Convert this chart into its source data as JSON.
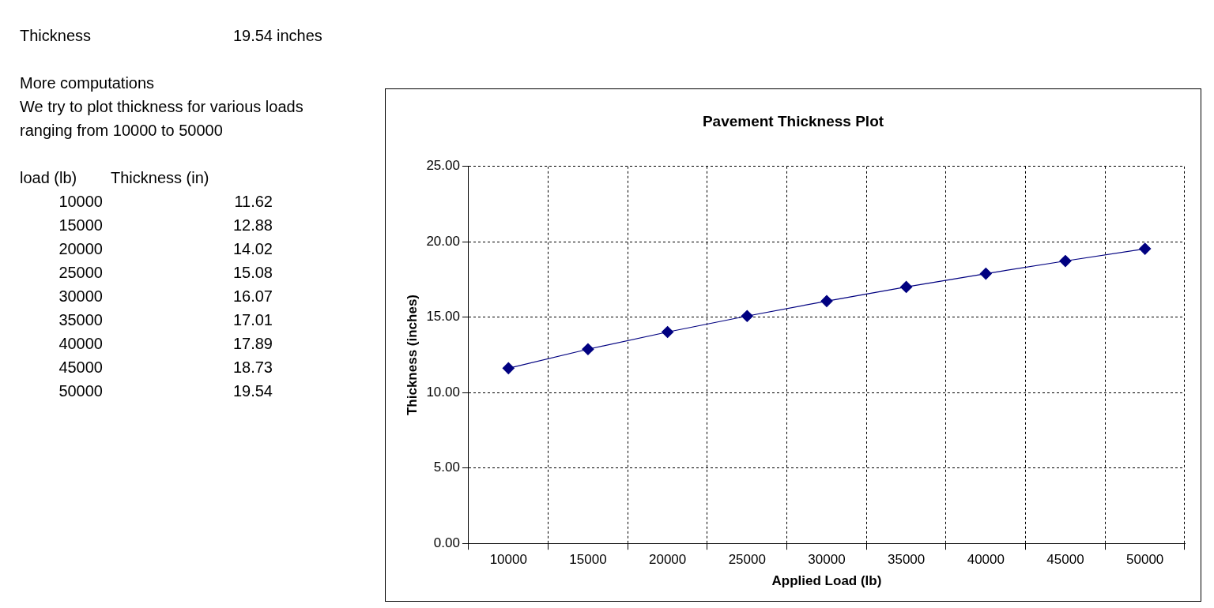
{
  "chart_data": {
    "type": "line",
    "title": "Pavement Thickness Plot",
    "xlabel": "Applied Load (lb)",
    "ylabel": "Thickness (inches)",
    "categories": [
      "10000",
      "15000",
      "20000",
      "25000",
      "30000",
      "35000",
      "40000",
      "45000",
      "50000"
    ],
    "series": [
      {
        "color": "#000080",
        "values": [
          11.62,
          12.88,
          14.02,
          15.08,
          16.07,
          17.01,
          17.89,
          18.73,
          19.54
        ]
      }
    ],
    "ylim": [
      0,
      25
    ],
    "yticks": [
      {
        "value": 0,
        "label": "0.00"
      },
      {
        "value": 5,
        "label": "5.00"
      },
      {
        "value": 10,
        "label": "10.00"
      },
      {
        "value": 15,
        "label": "15.00"
      },
      {
        "value": 20,
        "label": "20.00"
      },
      {
        "value": 25,
        "label": "25.00"
      }
    ],
    "grid": true,
    "legend": false,
    "marker": "diamond",
    "line_style": "solid",
    "annotations": [
      "Thickness",
      "19.54",
      "inches",
      "More computations",
      "We try to plot thickness for various loads",
      "ranging from 10000 to 50000",
      "load (lb)",
      "Thickness (in)",
      "11.62",
      "12.88",
      "14.02",
      "15.08",
      "16.07",
      "17.01",
      "17.89",
      "18.73",
      "19.54"
    ]
  }
}
